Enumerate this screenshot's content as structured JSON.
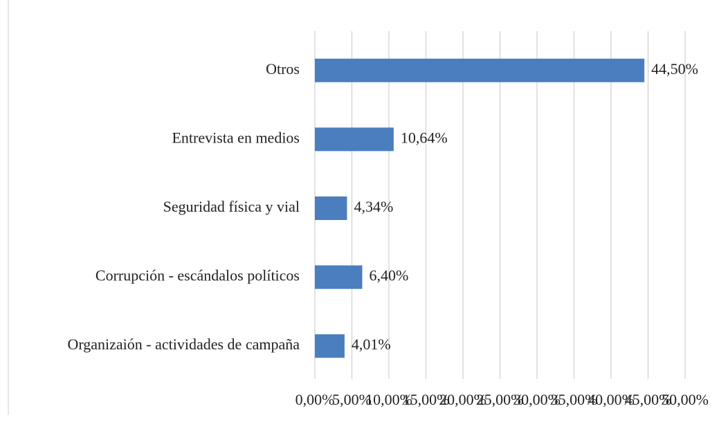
{
  "chart_data": {
    "type": "hbar",
    "categories": [
      "Otros",
      "Entrevista en medios",
      "Seguridad física y vial",
      "Corrupción - escándalos políticos",
      "Organizaión - actividades de campaña"
    ],
    "values": [
      44.5,
      10.64,
      4.34,
      6.4,
      4.01
    ],
    "value_labels": [
      "44,50%",
      "10,64%",
      "4,34%",
      "6,40%",
      "4,01%"
    ],
    "color": "#4a7ebf",
    "xlim": [
      0,
      50
    ],
    "xticks": [
      {
        "value": 0,
        "label": "0,00%"
      },
      {
        "value": 5,
        "label": "5,00%"
      },
      {
        "value": 10,
        "label": "10,00%"
      },
      {
        "value": 15,
        "label": "15,00%"
      },
      {
        "value": 20,
        "label": "20,00%"
      },
      {
        "value": 25,
        "label": "25,00%"
      },
      {
        "value": 30,
        "label": "30,00%"
      },
      {
        "value": 35,
        "label": "35,00%"
      },
      {
        "value": 40,
        "label": "40,00%"
      },
      {
        "value": 45,
        "label": "45,00%"
      },
      {
        "value": 50,
        "label": "50,00%"
      }
    ],
    "grid": true
  }
}
